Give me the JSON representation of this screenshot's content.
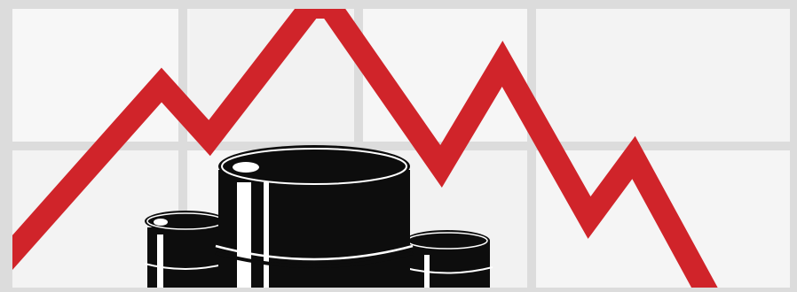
{
  "illustration": {
    "subject": "oil-barrels-falling-price",
    "colors": {
      "border": "#dcdcdc",
      "background": "#f4f4f4",
      "grid": "#d9d9d9",
      "trend_line": "#d0242a",
      "barrel": "#0d0d0d",
      "barrel_highlight": "#ffffff"
    },
    "trend": {
      "direction": "down",
      "visible_label": ""
    }
  }
}
